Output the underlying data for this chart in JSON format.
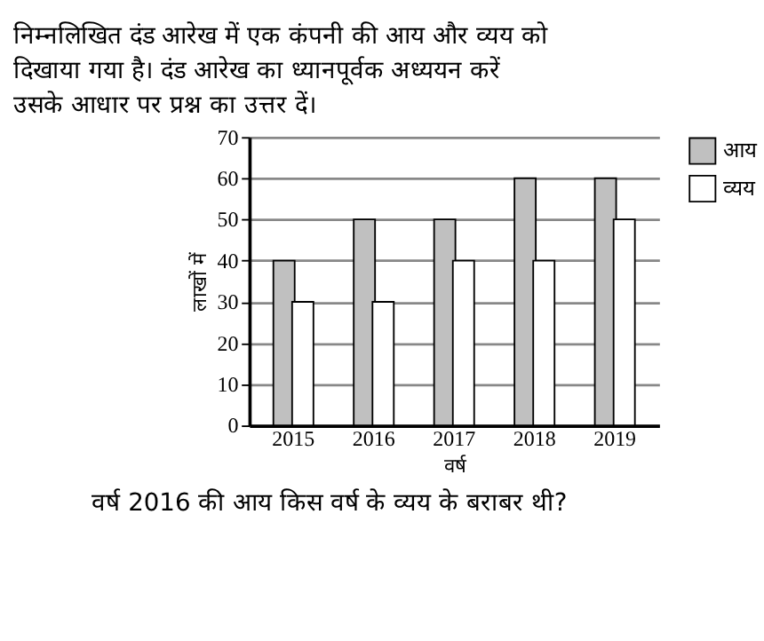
{
  "chart_data": {
    "type": "bar",
    "title": "निम्नलिखित दंड आरेख में एक कंपनी की आय और व्यय को दिखाया गया है। दंड आरेख का ध्यानपूर्वक अध्ययन करें उसके आधार पर प्रश्न का उत्तर दें।",
    "annotations": [
      "वर्ष 2016 की आय किस वर्ष के व्यय के बराबर थी?"
    ],
    "xlabel": "वर्ष",
    "ylabel": "लाखों में",
    "categories": [
      "2015",
      "2016",
      "2017",
      "2018",
      "2019"
    ],
    "series": [
      {
        "name": "आय",
        "color": "#c0c0c0",
        "values": [
          40,
          50,
          50,
          60,
          60
        ]
      },
      {
        "name": "व्यय",
        "color": "#ffffff",
        "values": [
          30,
          30,
          40,
          40,
          50
        ]
      }
    ],
    "ylim": [
      0,
      70
    ],
    "yticks": [
      0,
      10,
      20,
      30,
      40,
      50,
      60,
      70
    ],
    "grid": "y",
    "legend": "right"
  }
}
